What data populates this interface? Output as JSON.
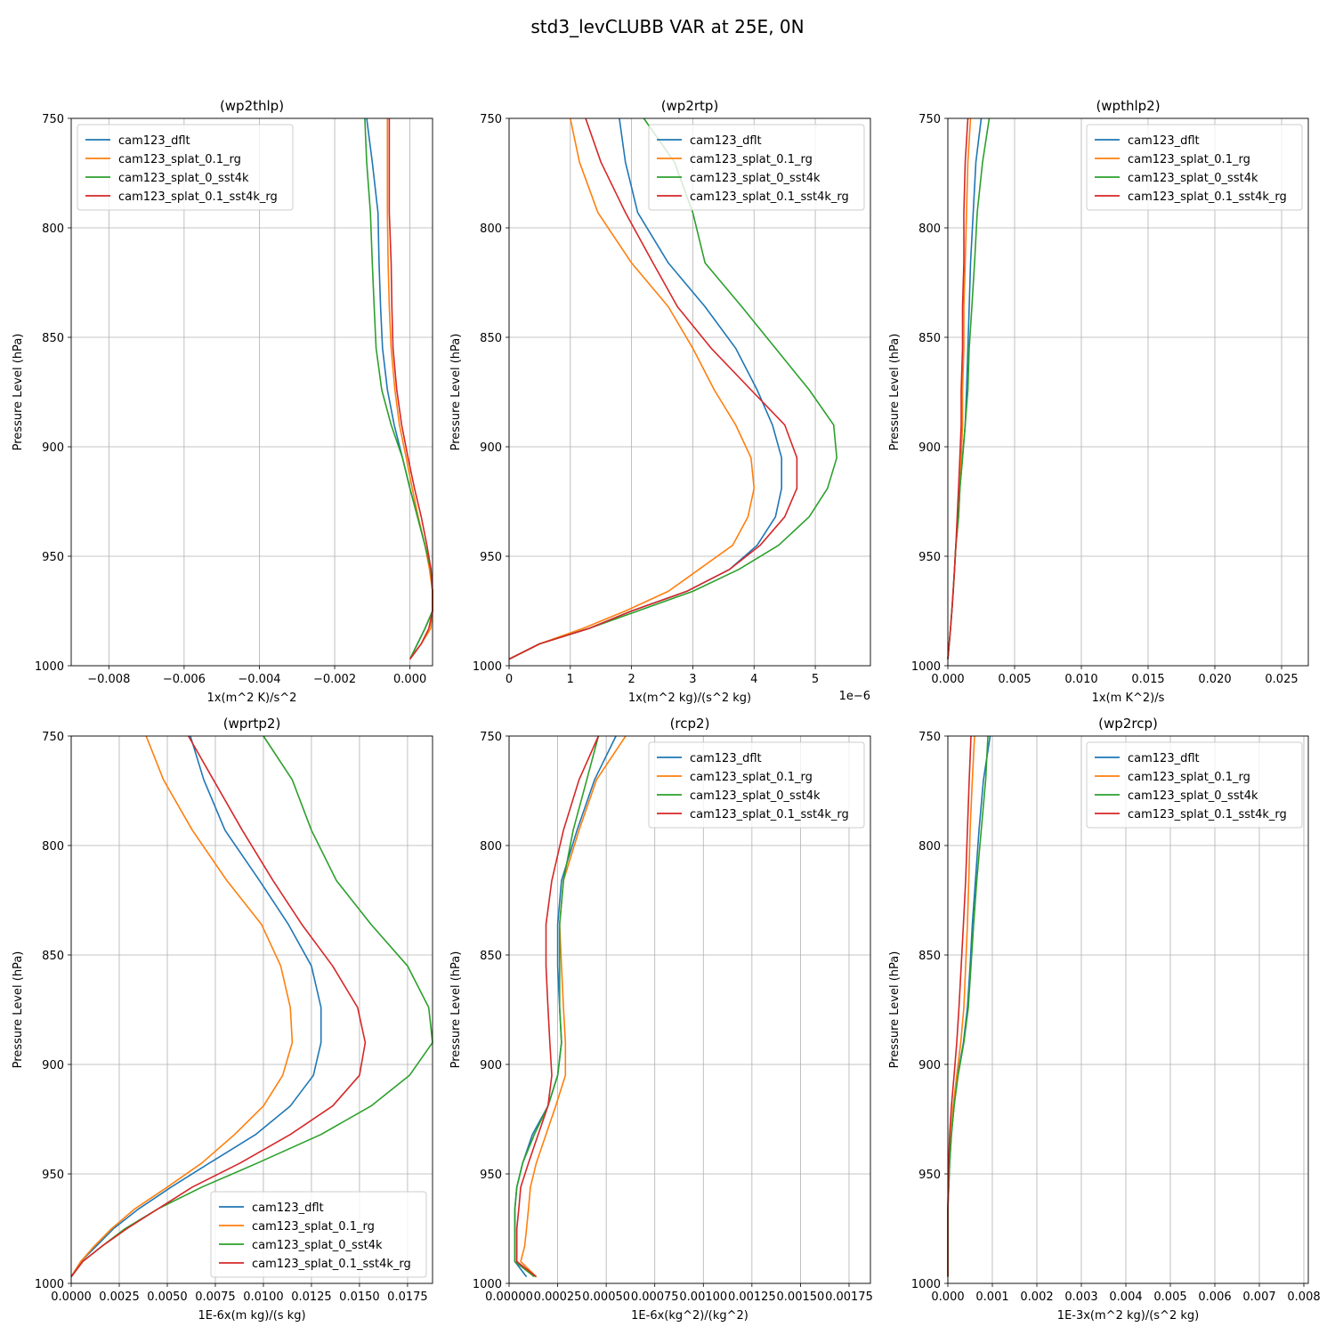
{
  "figure_title": "std3_levCLUBB VAR at 25E, 0N",
  "series_names": [
    "cam123_dflt",
    "cam123_splat_0.1_rg",
    "cam123_splat_0_sst4k",
    "cam123_splat_0.1_sst4k_rg"
  ],
  "series_colors": [
    "#1f77b4",
    "#ff7f0e",
    "#2ca02c",
    "#d62728"
  ],
  "ylabel": "Pressure Level (hPa)",
  "levels": [
    750,
    770,
    793,
    816,
    836,
    855,
    874,
    890,
    905,
    919,
    932,
    945,
    956,
    966,
    975,
    983,
    990,
    997
  ],
  "chart_data": [
    {
      "type": "line",
      "title": "(wp2thlp)",
      "xlabel": "1x(m^2 K)/s^2",
      "ylabel": "Pressure Level (hPa)",
      "xlim": [
        -0.009,
        0.0006
      ],
      "ylim": [
        1000,
        750
      ],
      "xticks": [
        -0.008,
        -0.006,
        -0.004,
        -0.002,
        0.0
      ],
      "xtick_labels": [
        "−0.008",
        "−0.006",
        "−0.004",
        "−0.002",
        "0.000"
      ],
      "yticks": [
        750,
        800,
        850,
        900,
        950,
        1000
      ],
      "offset_text": "",
      "legend_loc": "upper left",
      "series": [
        {
          "name": "cam123_dflt",
          "values": [
            -0.00115,
            -0.001,
            -0.00085,
            -0.00082,
            -0.00078,
            -0.00073,
            -0.0006,
            -0.00042,
            -0.0002,
            0.0,
            0.0002,
            0.0004,
            0.00055,
            0.0006,
            0.0006,
            0.0004,
            0.0002,
            0.0
          ]
        },
        {
          "name": "cam123_splat_0.1_rg",
          "values": [
            -0.0006,
            -0.0006,
            -0.0006,
            -0.00058,
            -0.00055,
            -0.0005,
            -0.0004,
            -0.00028,
            -0.0001,
            6e-05,
            0.00022,
            0.0004,
            0.00052,
            0.0006,
            0.0006,
            0.00055,
            0.0003,
            0.0
          ]
        },
        {
          "name": "cam123_splat_0_sst4k",
          "values": [
            -0.0012,
            -0.00115,
            -0.00105,
            -0.001,
            -0.00095,
            -0.0009,
            -0.00075,
            -0.0005,
            -0.0002,
            0.0,
            0.0002,
            0.0004,
            0.00055,
            0.0006,
            0.0006,
            0.0004,
            0.0002,
            0.0
          ]
        },
        {
          "name": "cam123_splat_0.1_sst4k_rg",
          "values": [
            -0.00055,
            -0.00055,
            -0.00055,
            -0.0005,
            -0.00048,
            -0.00045,
            -0.00035,
            -0.00022,
            -5e-05,
            0.00012,
            0.0003,
            0.00045,
            0.00056,
            0.0006,
            0.0006,
            0.0005,
            0.0003,
            0.0
          ]
        }
      ]
    },
    {
      "type": "line",
      "title": "(wp2rtp)",
      "xlabel": "1x(m^2 kg)/(s^2 kg)",
      "ylabel": "Pressure Level (hPa)",
      "xlim": [
        0,
        5.9
      ],
      "ylim": [
        1000,
        750
      ],
      "xticks": [
        0,
        1,
        2,
        3,
        4,
        5
      ],
      "xtick_labels": [
        "0",
        "1",
        "2",
        "3",
        "4",
        "5"
      ],
      "yticks": [
        750,
        800,
        850,
        900,
        950,
        1000
      ],
      "offset_text": "1e−6",
      "legend_loc": "upper right",
      "series": [
        {
          "name": "cam123_dflt",
          "values": [
            1.8,
            1.9,
            2.1,
            2.6,
            3.2,
            3.7,
            4.05,
            4.3,
            4.45,
            4.45,
            4.35,
            4.05,
            3.6,
            2.9,
            2.0,
            1.3,
            0.5,
            0.0
          ]
        },
        {
          "name": "cam123_splat_0.1_rg",
          "values": [
            1.0,
            1.15,
            1.45,
            2.0,
            2.6,
            3.0,
            3.35,
            3.7,
            3.95,
            4.0,
            3.9,
            3.65,
            3.1,
            2.6,
            1.9,
            1.2,
            0.5,
            0.0
          ]
        },
        {
          "name": "cam123_splat_0_sst4k",
          "values": [
            2.2,
            2.7,
            3.0,
            3.2,
            3.8,
            4.35,
            4.9,
            5.3,
            5.35,
            5.2,
            4.9,
            4.4,
            3.75,
            3.0,
            2.1,
            1.3,
            0.5,
            0.0
          ]
        },
        {
          "name": "cam123_splat_0.1_sst4k_rg",
          "values": [
            1.25,
            1.5,
            1.9,
            2.35,
            2.75,
            3.3,
            3.95,
            4.5,
            4.7,
            4.7,
            4.5,
            4.1,
            3.6,
            2.9,
            2.0,
            1.3,
            0.5,
            0.0
          ]
        }
      ]
    },
    {
      "type": "line",
      "title": "(wpthlp2)",
      "xlabel": "1x(m K^2)/s",
      "ylabel": "Pressure Level (hPa)",
      "xlim": [
        0,
        0.027
      ],
      "ylim": [
        1000,
        750
      ],
      "xticks": [
        0.0,
        0.005,
        0.01,
        0.015,
        0.02,
        0.025
      ],
      "xtick_labels": [
        "0.000",
        "0.005",
        "0.010",
        "0.015",
        "0.020",
        "0.025"
      ],
      "yticks": [
        750,
        800,
        850,
        900,
        950,
        1000
      ],
      "offset_text": "",
      "legend_loc": "upper right",
      "series": [
        {
          "name": "cam123_dflt",
          "values": [
            0.0025,
            0.0021,
            0.0019,
            0.0017,
            0.0016,
            0.0015,
            0.0014,
            0.0013,
            0.0011,
            0.0009,
            0.0008,
            0.0006,
            0.0005,
            0.0004,
            0.0003,
            0.0002,
            0.0001,
            0.0
          ]
        },
        {
          "name": "cam123_splat_0.1_rg",
          "values": [
            0.0017,
            0.0015,
            0.0014,
            0.0013,
            0.0012,
            0.0012,
            0.0011,
            0.0011,
            0.001,
            0.0009,
            0.0008,
            0.0006,
            0.0005,
            0.0004,
            0.0003,
            0.0002,
            0.0001,
            0.0
          ]
        },
        {
          "name": "cam123_splat_0_sst4k",
          "values": [
            0.0031,
            0.0026,
            0.0022,
            0.002,
            0.0018,
            0.0016,
            0.0015,
            0.0013,
            0.0011,
            0.0009,
            0.0008,
            0.0006,
            0.0005,
            0.0004,
            0.0003,
            0.0002,
            0.0001,
            0.0
          ]
        },
        {
          "name": "cam123_splat_0.1_sst4k_rg",
          "values": [
            0.0015,
            0.0013,
            0.0012,
            0.0012,
            0.0011,
            0.0011,
            0.001,
            0.001,
            0.0009,
            0.0008,
            0.0007,
            0.0006,
            0.0005,
            0.0004,
            0.0003,
            0.0002,
            0.0001,
            0.0
          ]
        }
      ]
    },
    {
      "type": "line",
      "title": "(wprtp2)",
      "xlabel": "1E-6x(m kg)/(s kg)",
      "ylabel": "Pressure Level (hPa)",
      "xlim": [
        0,
        0.0188
      ],
      "ylim": [
        1000,
        750
      ],
      "xticks": [
        0.0,
        0.0025,
        0.005,
        0.0075,
        0.01,
        0.0125,
        0.015,
        0.0175
      ],
      "xtick_labels": [
        "0.0000",
        "0.0025",
        "0.0050",
        "0.0075",
        "0.0100",
        "0.0125",
        "0.0150",
        "0.0175"
      ],
      "yticks": [
        750,
        800,
        850,
        900,
        950,
        1000
      ],
      "offset_text": "",
      "legend_loc": "lower right",
      "series": [
        {
          "name": "cam123_dflt",
          "values": [
            0.0062,
            0.0069,
            0.008,
            0.0098,
            0.0113,
            0.0125,
            0.013,
            0.013,
            0.0126,
            0.0114,
            0.0096,
            0.0072,
            0.0052,
            0.0035,
            0.0022,
            0.0013,
            0.0005,
            0.0
          ]
        },
        {
          "name": "cam123_splat_0.1_rg",
          "values": [
            0.0039,
            0.0048,
            0.0063,
            0.0081,
            0.0099,
            0.0109,
            0.0114,
            0.0115,
            0.011,
            0.01,
            0.0085,
            0.0068,
            0.005,
            0.0033,
            0.0021,
            0.0012,
            0.0005,
            0.0
          ]
        },
        {
          "name": "cam123_splat_0_sst4k",
          "values": [
            0.01,
            0.0115,
            0.0125,
            0.0138,
            0.0156,
            0.0175,
            0.0186,
            0.0188,
            0.0176,
            0.0156,
            0.013,
            0.0097,
            0.0068,
            0.0045,
            0.0028,
            0.0016,
            0.0006,
            0.0
          ]
        },
        {
          "name": "cam123_splat_0.1_sst4k_rg",
          "values": [
            0.0061,
            0.0074,
            0.0089,
            0.0105,
            0.012,
            0.0136,
            0.0149,
            0.0153,
            0.015,
            0.0136,
            0.0114,
            0.0088,
            0.0063,
            0.0045,
            0.0029,
            0.0016,
            0.0006,
            0.0
          ]
        }
      ]
    },
    {
      "type": "line",
      "title": "(rcp2)",
      "xlabel": "1E-6x(kg^2)/(kg^2)",
      "ylabel": "Pressure Level (hPa)",
      "xlim": [
        0,
        0.00186
      ],
      "ylim": [
        1000,
        750
      ],
      "xticks": [
        0.0,
        0.00025,
        0.0005,
        0.00075,
        0.001,
        0.00125,
        0.0015,
        0.00175
      ],
      "xtick_labels": [
        "0.00000",
        "0.00025",
        "0.00050",
        "0.00075",
        "0.00100",
        "0.00125",
        "0.00150",
        "0.00175"
      ],
      "yticks": [
        750,
        800,
        850,
        900,
        950,
        1000
      ],
      "offset_text": "",
      "legend_loc": "upper right",
      "series": [
        {
          "name": "cam123_dflt",
          "values": [
            0.00055,
            0.00044,
            0.00035,
            0.00027,
            0.00025,
            0.00025,
            0.00026,
            0.00027,
            0.00025,
            0.0002,
            0.00012,
            7e-05,
            4e-05,
            3e-05,
            3e-05,
            3e-05,
            3e-05,
            9e-05
          ]
        },
        {
          "name": "cam123_splat_0.1_rg",
          "values": [
            0.0006,
            0.00045,
            0.00036,
            0.00028,
            0.00026,
            0.00027,
            0.00028,
            0.00029,
            0.00029,
            0.00024,
            0.00019,
            0.00014,
            0.00011,
            0.0001,
            9e-05,
            8e-05,
            6e-05,
            0.00014
          ]
        },
        {
          "name": "cam123_splat_0_sst4k",
          "values": [
            0.00046,
            0.0004,
            0.00033,
            0.00028,
            0.00026,
            0.00026,
            0.00026,
            0.00027,
            0.00025,
            0.0002,
            0.00013,
            7e-05,
            4e-05,
            3e-05,
            3e-05,
            3e-05,
            3e-05,
            0.00013
          ]
        },
        {
          "name": "cam123_splat_0.1_sst4k_rg",
          "values": [
            0.00046,
            0.00036,
            0.00028,
            0.00022,
            0.00019,
            0.00019,
            0.0002,
            0.00021,
            0.00022,
            0.0002,
            0.00015,
            0.0001,
            6e-05,
            5e-05,
            4e-05,
            4e-05,
            4e-05,
            0.00014
          ]
        }
      ]
    },
    {
      "type": "line",
      "title": "(wp2rcp)",
      "xlabel": "1E-3x(m^2 kg)/(s^2 kg)",
      "ylabel": "Pressure Level (hPa)",
      "xlim": [
        0,
        0.0081
      ],
      "ylim": [
        1000,
        750
      ],
      "xticks": [
        0.0,
        0.001,
        0.002,
        0.003,
        0.004,
        0.005,
        0.006,
        0.007,
        0.008
      ],
      "xtick_labels": [
        "0.000",
        "0.001",
        "0.002",
        "0.003",
        "0.004",
        "0.005",
        "0.006",
        "0.007",
        "0.008"
      ],
      "yticks": [
        750,
        800,
        850,
        900,
        950,
        1000
      ],
      "offset_text": "",
      "legend_loc": "upper right",
      "series": [
        {
          "name": "cam123_dflt",
          "values": [
            0.00095,
            0.0008,
            0.0007,
            0.00062,
            0.00055,
            0.0005,
            0.00044,
            0.00035,
            0.00022,
            0.00014,
            8e-05,
            4e-05,
            2e-05,
            0.0,
            0.0,
            0.0,
            0.0,
            0.0
          ]
        },
        {
          "name": "cam123_splat_0.1_rg",
          "values": [
            0.0006,
            0.00055,
            0.0005,
            0.00047,
            0.00044,
            0.0004,
            0.00036,
            0.00029,
            0.0002,
            0.00012,
            7e-05,
            3e-05,
            1e-05,
            0.0,
            0.0,
            0.0,
            0.0,
            0.0
          ]
        },
        {
          "name": "cam123_splat_0_sst4k",
          "values": [
            0.0009,
            0.00085,
            0.00075,
            0.00065,
            0.00058,
            0.00052,
            0.00046,
            0.00036,
            0.00023,
            0.00014,
            8e-05,
            4e-05,
            2e-05,
            0.0,
            0.0,
            0.0,
            0.0,
            0.0
          ]
        },
        {
          "name": "cam123_splat_0.1_sst4k_rg",
          "values": [
            0.00052,
            0.00048,
            0.00044,
            0.0004,
            0.00035,
            0.0003,
            0.00025,
            0.0002,
            0.00014,
            8e-05,
            4e-05,
            2e-05,
            1e-05,
            0.0,
            0.0,
            0.0,
            0.0,
            0.0
          ]
        }
      ]
    }
  ]
}
